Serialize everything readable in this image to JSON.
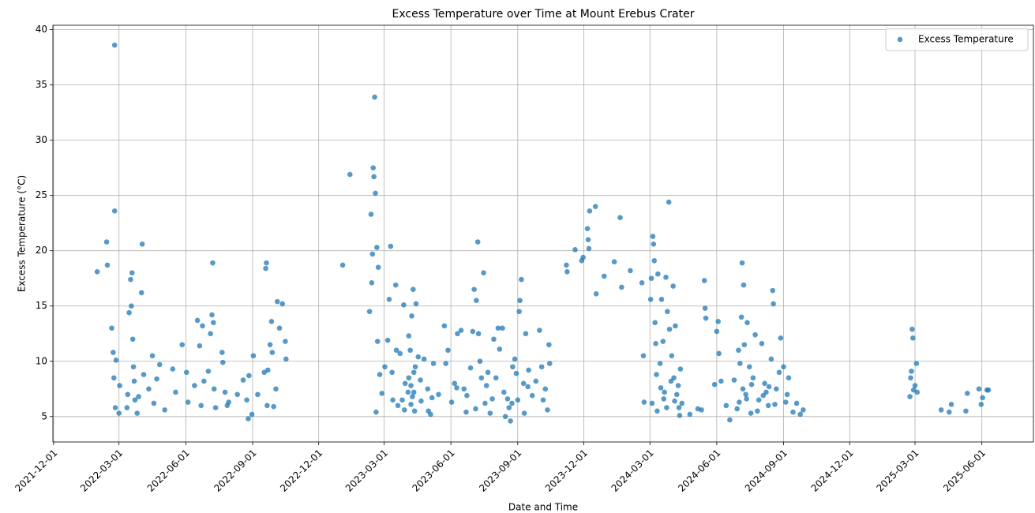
{
  "chart_data": {
    "type": "scatter",
    "title": "Excess Temperature over Time at Mount Erebus Crater",
    "x_label": "Date and Time",
    "y_label": "Excess Temperature (°C)",
    "xlim": [
      "2021-11-30",
      "2025-08-11"
    ],
    "xticks": [
      "2021-12-01",
      "2022-03-01",
      "2022-06-01",
      "2022-09-01",
      "2022-12-01",
      "2023-03-01",
      "2023-06-01",
      "2023-09-01",
      "2023-12-01",
      "2024-03-01",
      "2024-06-01",
      "2024-09-01",
      "2024-12-01",
      "2025-03-01",
      "2025-06-01"
    ],
    "ylim": [
      2.7,
      40.4
    ],
    "yticks": [
      5,
      10,
      15,
      20,
      25,
      30,
      35,
      40
    ],
    "grid": true,
    "legend": "upper right",
    "series": [
      {
        "name": "Excess Temperature",
        "color": "#1f77b4",
        "x": [
          "2022-01-30",
          "2022-02-12",
          "2022-02-13",
          "2022-02-19",
          "2022-02-21",
          "2022-02-22",
          "2022-02-23",
          "2022-02-23",
          "2022-02-24",
          "2022-02-25",
          "2022-03-01",
          "2022-03-02",
          "2022-03-12",
          "2022-03-13",
          "2022-03-15",
          "2022-03-17",
          "2022-03-18",
          "2022-03-19",
          "2022-03-20",
          "2022-03-21",
          "2022-03-22",
          "2022-03-23",
          "2022-03-26",
          "2022-03-28",
          "2022-04-01",
          "2022-04-02",
          "2022-04-04",
          "2022-04-11",
          "2022-04-16",
          "2022-04-18",
          "2022-04-22",
          "2022-04-26",
          "2022-05-03",
          "2022-05-14",
          "2022-05-18",
          "2022-05-27",
          "2022-06-02",
          "2022-06-04",
          "2022-06-13",
          "2022-06-17",
          "2022-06-20",
          "2022-06-22",
          "2022-06-24",
          "2022-06-26",
          "2022-07-02",
          "2022-07-05",
          "2022-07-07",
          "2022-07-08",
          "2022-07-09",
          "2022-07-10",
          "2022-07-12",
          "2022-07-21",
          "2022-07-22",
          "2022-07-25",
          "2022-07-28",
          "2022-07-30",
          "2022-08-11",
          "2022-08-19",
          "2022-08-24",
          "2022-08-26",
          "2022-08-27",
          "2022-08-31",
          "2022-09-02",
          "2022-09-08",
          "2022-09-17",
          "2022-09-19",
          "2022-09-20",
          "2022-09-21",
          "2022-09-22",
          "2022-09-25",
          "2022-09-27",
          "2022-09-28",
          "2022-09-30",
          "2022-10-03",
          "2022-10-05",
          "2022-10-08",
          "2022-10-12",
          "2022-10-16",
          "2022-10-17",
          "2023-01-03",
          "2023-01-13",
          "2023-02-09",
          "2023-02-11",
          "2023-02-12",
          "2023-02-13",
          "2023-02-14",
          "2023-02-15",
          "2023-02-16",
          "2023-02-17",
          "2023-02-18",
          "2023-02-19",
          "2023-02-20",
          "2023-02-21",
          "2023-02-23",
          "2023-02-26",
          "2023-03-02",
          "2023-03-06",
          "2023-03-08",
          "2023-03-10",
          "2023-03-12",
          "2023-03-17",
          "2023-03-20",
          "2023-03-23",
          "2023-03-26",
          "2023-03-28",
          "2023-03-30",
          "2023-04-03",
          "2023-04-04",
          "2023-04-06",
          "2023-04-07",
          "2023-04-08",
          "2023-04-10",
          "2023-04-11",
          "2023-04-12",
          "2023-04-14",
          "2023-04-17",
          "2023-04-21",
          "2023-04-25",
          "2023-04-30",
          "2023-05-04",
          "2023-05-08",
          "2023-05-15",
          "2023-05-23",
          "2023-05-25",
          "2023-05-28",
          "2023-06-02",
          "2023-06-06",
          "2023-06-10",
          "2023-06-15",
          "2023-06-19",
          "2023-06-23",
          "2023-06-28",
          "2023-07-01",
          "2023-07-03",
          "2023-07-06",
          "2023-07-08",
          "2023-07-09",
          "2023-07-11",
          "2023-07-13",
          "2023-07-16",
          "2023-07-18",
          "2023-07-20",
          "2023-07-25",
          "2023-07-30",
          "2023-08-02",
          "2023-08-05",
          "2023-08-07",
          "2023-08-11",
          "2023-08-15",
          "2023-08-18",
          "2023-08-22",
          "2023-08-25",
          "2023-08-28",
          "2023-09-01",
          "2023-09-03",
          "2023-09-04",
          "2023-09-06",
          "2023-09-09",
          "2023-09-12",
          "2023-09-16",
          "2023-09-21",
          "2023-09-26",
          "2023-10-01",
          "2023-10-04",
          "2023-10-09",
          "2023-10-12",
          "2023-10-14",
          "2023-10-15",
          "2023-04-04",
          "2023-03-13",
          "2023-03-18",
          "2023-03-29",
          "2023-04-20",
          "2023-05-01",
          "2023-05-06",
          "2023-06-09",
          "2023-06-22",
          "2023-07-05",
          "2023-07-22",
          "2023-07-28",
          "2023-08-13",
          "2023-08-20",
          "2023-08-24",
          "2023-08-30",
          "2023-09-10",
          "2023-09-15",
          "2023-10-06",
          "2023-04-07",
          "2023-04-09",
          "2023-04-11",
          "2023-04-13",
          "2023-11-07",
          "2023-11-08",
          "2023-11-19",
          "2023-11-28",
          "2023-11-30",
          "2023-12-06",
          "2023-12-07",
          "2023-12-08",
          "2023-12-09",
          "2023-12-17",
          "2023-12-18",
          "2023-12-29",
          "2024-01-12",
          "2024-01-20",
          "2024-01-22",
          "2024-02-03",
          "2024-02-19",
          "2024-02-21",
          "2024-02-22",
          "2024-03-02",
          "2024-03-03",
          "2024-03-05",
          "2024-03-06",
          "2024-03-07",
          "2024-03-08",
          "2024-03-09",
          "2024-03-10",
          "2024-03-12",
          "2024-03-15",
          "2024-03-17",
          "2024-03-19",
          "2024-03-21",
          "2024-03-23",
          "2024-03-25",
          "2024-03-27",
          "2024-03-28",
          "2024-03-31",
          "2024-04-02",
          "2024-04-03",
          "2024-04-05",
          "2024-04-07",
          "2024-04-10",
          "2024-04-12",
          "2024-04-14",
          "2024-04-25",
          "2024-05-06",
          "2024-05-11",
          "2024-05-15",
          "2024-05-16",
          "2024-05-17",
          "2024-05-29",
          "2024-06-01",
          "2024-06-03",
          "2024-06-04",
          "2024-06-07",
          "2024-06-14",
          "2024-06-19",
          "2024-06-25",
          "2024-06-29",
          "2024-07-01",
          "2024-07-03",
          "2024-07-05",
          "2024-07-06",
          "2024-07-08",
          "2024-07-09",
          "2024-07-11",
          "2024-07-13",
          "2024-07-16",
          "2024-07-18",
          "2024-07-21",
          "2024-07-24",
          "2024-07-29",
          "2024-08-02",
          "2024-08-06",
          "2024-08-08",
          "2024-08-11",
          "2024-08-15",
          "2024-08-17",
          "2024-08-18",
          "2024-08-22",
          "2024-08-28",
          "2024-09-01",
          "2024-09-04",
          "2024-09-08",
          "2024-09-14",
          "2024-09-19",
          "2024-09-24",
          "2024-09-28",
          "2024-03-04",
          "2024-03-11",
          "2024-03-16",
          "2024-03-20",
          "2024-03-24",
          "2024-03-30",
          "2024-04-04",
          "2024-04-09",
          "2024-04-11",
          "2024-07-02",
          "2024-07-07",
          "2024-07-12",
          "2024-07-19",
          "2024-07-27",
          "2024-08-04",
          "2024-08-12",
          "2024-08-20",
          "2024-08-26",
          "2024-09-06",
          "2025-02-22",
          "2025-02-23",
          "2025-02-24",
          "2025-02-25",
          "2025-02-26",
          "2025-02-27",
          "2025-03-01",
          "2025-03-03",
          "2025-03-04",
          "2025-04-06",
          "2025-04-17",
          "2025-04-20",
          "2025-05-10",
          "2025-05-12",
          "2025-05-28",
          "2025-05-31",
          "2025-06-02",
          "2025-06-08",
          "2025-06-10"
        ],
        "values": [
          18.1,
          20.8,
          18.7,
          13,
          10.8,
          8.5,
          23.6,
          38.6,
          5.8,
          10.1,
          5.3,
          7.8,
          5.8,
          7,
          14.4,
          17.4,
          15,
          18,
          12,
          9.5,
          8.2,
          6.5,
          5.3,
          6.8,
          16.2,
          20.6,
          8.8,
          7.5,
          10.5,
          6.2,
          8.4,
          9.7,
          5.6,
          9.3,
          7.2,
          11.5,
          9,
          6.3,
          7.8,
          13.7,
          11.4,
          6,
          13.2,
          8.2,
          9.1,
          12.5,
          14.2,
          18.9,
          13.5,
          7.5,
          5.8,
          10.8,
          9.9,
          7.2,
          6,
          6.3,
          7,
          8.3,
          6.5,
          4.8,
          8.7,
          5.2,
          10.5,
          7,
          9,
          18.4,
          18.9,
          6,
          9.2,
          11.5,
          13.6,
          10.8,
          5.9,
          7.5,
          15.4,
          13,
          15.2,
          11.8,
          10.2,
          18.7,
          26.9,
          14.5,
          23.3,
          17.1,
          19.7,
          27.5,
          26.7,
          33.9,
          25.2,
          5.4,
          20.3,
          11.8,
          18.5,
          8.8,
          7.1,
          9.5,
          11.9,
          15.6,
          20.4,
          9,
          16.9,
          6,
          10.7,
          6.5,
          15.1,
          8,
          7.2,
          12.3,
          11,
          6.1,
          14.1,
          16.5,
          9,
          5.5,
          15.2,
          10.4,
          6.4,
          10.2,
          7.5,
          5.2,
          9.8,
          7,
          13.2,
          9.8,
          11,
          6.3,
          8,
          12.5,
          12.8,
          7.5,
          6.9,
          9.4,
          12.7,
          16.5,
          15.5,
          20.8,
          12.5,
          10,
          8.5,
          18,
          6.2,
          7.8,
          5.3,
          12,
          8.5,
          13,
          11.1,
          13,
          5,
          6.6,
          4.6,
          9.5,
          10.2,
          6.5,
          14.5,
          15.5,
          17.4,
          8,
          12.5,
          9.2,
          6.9,
          8.2,
          12.8,
          9.5,
          7.5,
          5.6,
          11.5,
          9.8,
          8.5,
          6.5,
          11,
          5.6,
          8.3,
          5.5,
          6.7,
          7.6,
          5.4,
          5.7,
          9,
          6.6,
          7.2,
          5.8,
          6.2,
          8.9,
          5.3,
          7.7,
          6.5,
          7.8,
          6.8,
          7.2,
          9.5,
          18.7,
          18.1,
          20.1,
          19.1,
          19.4,
          22,
          21,
          20.2,
          23.6,
          24,
          16.1,
          17.7,
          19,
          23,
          16.7,
          18.2,
          17.1,
          10.5,
          6.3,
          15.6,
          17.5,
          21.3,
          20.6,
          19.1,
          13.5,
          11.6,
          8.8,
          17.9,
          9.8,
          15.6,
          11.8,
          7.2,
          17.6,
          14.5,
          24.4,
          12.9,
          10.5,
          16.8,
          8.5,
          13.2,
          7,
          5.8,
          9.3,
          6.2,
          5.2,
          5.7,
          5.6,
          17.3,
          14.8,
          13.9,
          7.9,
          12.7,
          13.6,
          10.7,
          8.2,
          6,
          4.7,
          8.3,
          5.7,
          11,
          9.8,
          14,
          18.9,
          16.9,
          11.5,
          7,
          13.5,
          9.5,
          5.3,
          8.5,
          12.4,
          6.5,
          11.6,
          8,
          7.2,
          6,
          10.2,
          16.4,
          15.2,
          7.5,
          12.1,
          9.5,
          6.3,
          8.5,
          5.4,
          6.2,
          5.2,
          5.6,
          6.2,
          5.5,
          7.6,
          6.6,
          5.8,
          8.2,
          6.4,
          7.8,
          5.1,
          6.3,
          7.5,
          6.6,
          7.9,
          5.5,
          6.9,
          7.7,
          6.1,
          9,
          7,
          6.8,
          8.5,
          9.1,
          12.9,
          12.1,
          7.4,
          7.8,
          9.8,
          7.2,
          5.6,
          5.4,
          6.1,
          5.5,
          7.1,
          7.5,
          6.1,
          6.7,
          7.4,
          7.4
        ]
      }
    ]
  }
}
